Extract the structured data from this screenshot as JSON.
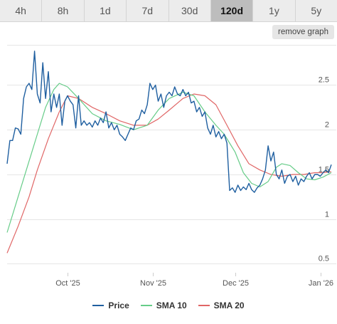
{
  "tabs": [
    {
      "label": "4h",
      "active": false
    },
    {
      "label": "8h",
      "active": false
    },
    {
      "label": "1d",
      "active": false
    },
    {
      "label": "7d",
      "active": false
    },
    {
      "label": "30d",
      "active": false
    },
    {
      "label": "120d",
      "active": true
    },
    {
      "label": "1y",
      "active": false
    },
    {
      "label": "5y",
      "active": false
    }
  ],
  "remove_graph_label": "remove graph",
  "legend": [
    {
      "label": "Price",
      "color": "#1f5fa0"
    },
    {
      "label": "SMA 10",
      "color": "#66cc88"
    },
    {
      "label": "SMA 20",
      "color": "#e06666"
    }
  ],
  "chart_data": {
    "type": "line",
    "x_start": "2025-09-09",
    "x_end": "2026-01-05",
    "x_ticks": [
      {
        "date": "2025-10-01",
        "label": "Oct '25"
      },
      {
        "date": "2025-11-01",
        "label": "Nov '25"
      },
      {
        "date": "2025-12-01",
        "label": "Dec '25"
      },
      {
        "date": "2026-01-01",
        "label": "Jan '26"
      }
    ],
    "y_ticks": [
      0.5,
      1,
      1.5,
      2,
      2.5
    ],
    "y_tick_labels": [
      "0.5",
      "1",
      "1.5",
      "2",
      "2.5"
    ],
    "ylim": [
      0.4,
      2.95
    ],
    "grid": true,
    "legend_position": "bottom-center",
    "series": [
      {
        "name": "Price",
        "color": "#1f5fa0",
        "points": [
          [
            "2025-09-09",
            1.62
          ],
          [
            "2025-09-10",
            1.88
          ],
          [
            "2025-09-11",
            1.88
          ],
          [
            "2025-09-12",
            2.02
          ],
          [
            "2025-09-13",
            2.01
          ],
          [
            "2025-09-14",
            1.95
          ],
          [
            "2025-09-15",
            2.35
          ],
          [
            "2025-09-16",
            2.48
          ],
          [
            "2025-09-17",
            2.52
          ],
          [
            "2025-09-18",
            2.45
          ],
          [
            "2025-09-19",
            2.88
          ],
          [
            "2025-09-20",
            2.4
          ],
          [
            "2025-09-21",
            2.3
          ],
          [
            "2025-09-22",
            2.75
          ],
          [
            "2025-09-23",
            2.35
          ],
          [
            "2025-09-24",
            2.65
          ],
          [
            "2025-09-25",
            2.2
          ],
          [
            "2025-09-26",
            2.4
          ],
          [
            "2025-09-27",
            2.25
          ],
          [
            "2025-09-28",
            2.4
          ],
          [
            "2025-09-29",
            2.05
          ],
          [
            "2025-09-30",
            2.32
          ],
          [
            "2025-10-01",
            2.38
          ],
          [
            "2025-10-02",
            2.32
          ],
          [
            "2025-10-03",
            2.28
          ],
          [
            "2025-10-04",
            2.02
          ],
          [
            "2025-10-05",
            2.38
          ],
          [
            "2025-10-06",
            2.05
          ],
          [
            "2025-10-07",
            2.1
          ],
          [
            "2025-10-08",
            2.05
          ],
          [
            "2025-10-09",
            2.08
          ],
          [
            "2025-10-10",
            2.03
          ],
          [
            "2025-10-11",
            2.1
          ],
          [
            "2025-10-12",
            2.05
          ],
          [
            "2025-10-13",
            2.13
          ],
          [
            "2025-10-14",
            2.08
          ],
          [
            "2025-10-15",
            2.2
          ],
          [
            "2025-10-16",
            2.02
          ],
          [
            "2025-10-17",
            2.08
          ],
          [
            "2025-10-18",
            2.0
          ],
          [
            "2025-10-19",
            2.05
          ],
          [
            "2025-10-20",
            1.95
          ],
          [
            "2025-10-21",
            1.92
          ],
          [
            "2025-10-22",
            1.88
          ],
          [
            "2025-10-23",
            1.95
          ],
          [
            "2025-10-24",
            2.02
          ],
          [
            "2025-10-25",
            2.0
          ],
          [
            "2025-10-26",
            2.1
          ],
          [
            "2025-10-27",
            2.12
          ],
          [
            "2025-10-28",
            2.22
          ],
          [
            "2025-10-29",
            2.18
          ],
          [
            "2025-10-30",
            2.28
          ],
          [
            "2025-10-31",
            2.52
          ],
          [
            "2025-11-01",
            2.45
          ],
          [
            "2025-11-02",
            2.5
          ],
          [
            "2025-11-03",
            2.32
          ],
          [
            "2025-11-04",
            2.4
          ],
          [
            "2025-11-05",
            2.25
          ],
          [
            "2025-11-06",
            2.38
          ],
          [
            "2025-11-07",
            2.42
          ],
          [
            "2025-11-08",
            2.38
          ],
          [
            "2025-11-09",
            2.48
          ],
          [
            "2025-11-10",
            2.4
          ],
          [
            "2025-11-11",
            2.38
          ],
          [
            "2025-11-12",
            2.45
          ],
          [
            "2025-11-13",
            2.38
          ],
          [
            "2025-11-14",
            2.42
          ],
          [
            "2025-11-15",
            2.3
          ],
          [
            "2025-11-16",
            2.32
          ],
          [
            "2025-11-17",
            2.2
          ],
          [
            "2025-11-18",
            2.25
          ],
          [
            "2025-11-19",
            2.15
          ],
          [
            "2025-11-20",
            2.2
          ],
          [
            "2025-11-21",
            2.02
          ],
          [
            "2025-11-22",
            1.95
          ],
          [
            "2025-11-23",
            2.05
          ],
          [
            "2025-11-24",
            1.92
          ],
          [
            "2025-11-25",
            1.98
          ],
          [
            "2025-11-26",
            1.9
          ],
          [
            "2025-11-27",
            1.95
          ],
          [
            "2025-11-28",
            1.85
          ],
          [
            "2025-11-29",
            1.32
          ],
          [
            "2025-11-30",
            1.35
          ],
          [
            "2025-12-01",
            1.3
          ],
          [
            "2025-12-02",
            1.38
          ],
          [
            "2025-12-03",
            1.32
          ],
          [
            "2025-12-04",
            1.36
          ],
          [
            "2025-12-05",
            1.33
          ],
          [
            "2025-12-06",
            1.4
          ],
          [
            "2025-12-07",
            1.33
          ],
          [
            "2025-12-08",
            1.3
          ],
          [
            "2025-12-09",
            1.35
          ],
          [
            "2025-12-10",
            1.38
          ],
          [
            "2025-12-11",
            1.45
          ],
          [
            "2025-12-12",
            1.55
          ],
          [
            "2025-12-13",
            1.82
          ],
          [
            "2025-12-14",
            1.65
          ],
          [
            "2025-12-15",
            1.75
          ],
          [
            "2025-12-16",
            1.5
          ],
          [
            "2025-12-17",
            1.45
          ],
          [
            "2025-12-18",
            1.55
          ],
          [
            "2025-12-19",
            1.4
          ],
          [
            "2025-12-20",
            1.48
          ],
          [
            "2025-12-21",
            1.5
          ],
          [
            "2025-12-22",
            1.42
          ],
          [
            "2025-12-23",
            1.48
          ],
          [
            "2025-12-24",
            1.38
          ],
          [
            "2025-12-25",
            1.45
          ],
          [
            "2025-12-26",
            1.42
          ],
          [
            "2025-12-27",
            1.48
          ],
          [
            "2025-12-28",
            1.52
          ],
          [
            "2025-12-29",
            1.45
          ],
          [
            "2025-12-30",
            1.5
          ],
          [
            "2025-12-31",
            1.5
          ],
          [
            "2026-01-01",
            1.48
          ],
          [
            "2026-01-02",
            1.52
          ],
          [
            "2026-01-03",
            1.55
          ],
          [
            "2026-01-04",
            1.52
          ],
          [
            "2026-01-05",
            1.61
          ]
        ]
      },
      {
        "name": "SMA 10",
        "color": "#66cc88",
        "points": [
          [
            "2025-09-09",
            0.85
          ],
          [
            "2025-09-12",
            1.15
          ],
          [
            "2025-09-15",
            1.45
          ],
          [
            "2025-09-18",
            1.75
          ],
          [
            "2025-09-20",
            1.95
          ],
          [
            "2025-09-23",
            2.25
          ],
          [
            "2025-09-26",
            2.45
          ],
          [
            "2025-09-28",
            2.52
          ],
          [
            "2025-10-01",
            2.48
          ],
          [
            "2025-10-05",
            2.35
          ],
          [
            "2025-10-10",
            2.18
          ],
          [
            "2025-10-15",
            2.1
          ],
          [
            "2025-10-20",
            2.06
          ],
          [
            "2025-10-25",
            2.0
          ],
          [
            "2025-10-30",
            2.05
          ],
          [
            "2025-11-03",
            2.22
          ],
          [
            "2025-11-07",
            2.35
          ],
          [
            "2025-11-12",
            2.42
          ],
          [
            "2025-11-16",
            2.38
          ],
          [
            "2025-11-20",
            2.2
          ],
          [
            "2025-11-24",
            2.05
          ],
          [
            "2025-11-27",
            1.95
          ],
          [
            "2025-12-01",
            1.75
          ],
          [
            "2025-12-04",
            1.52
          ],
          [
            "2025-12-07",
            1.4
          ],
          [
            "2025-12-10",
            1.36
          ],
          [
            "2025-12-13",
            1.42
          ],
          [
            "2025-12-16",
            1.58
          ],
          [
            "2025-12-18",
            1.62
          ],
          [
            "2025-12-21",
            1.6
          ],
          [
            "2025-12-24",
            1.52
          ],
          [
            "2025-12-27",
            1.45
          ],
          [
            "2025-12-30",
            1.44
          ],
          [
            "2026-01-02",
            1.47
          ],
          [
            "2026-01-05",
            1.52
          ]
        ]
      },
      {
        "name": "SMA 20",
        "color": "#e06666",
        "points": [
          [
            "2025-09-09",
            0.62
          ],
          [
            "2025-09-13",
            0.92
          ],
          [
            "2025-09-17",
            1.25
          ],
          [
            "2025-09-20",
            1.55
          ],
          [
            "2025-09-24",
            1.9
          ],
          [
            "2025-09-28",
            2.2
          ],
          [
            "2025-10-01",
            2.38
          ],
          [
            "2025-10-05",
            2.35
          ],
          [
            "2025-10-10",
            2.25
          ],
          [
            "2025-10-15",
            2.18
          ],
          [
            "2025-10-20",
            2.1
          ],
          [
            "2025-10-25",
            2.05
          ],
          [
            "2025-10-30",
            2.05
          ],
          [
            "2025-11-03",
            2.12
          ],
          [
            "2025-11-07",
            2.22
          ],
          [
            "2025-11-12",
            2.35
          ],
          [
            "2025-11-16",
            2.4
          ],
          [
            "2025-11-20",
            2.38
          ],
          [
            "2025-11-24",
            2.28
          ],
          [
            "2025-11-28",
            2.05
          ],
          [
            "2025-12-02",
            1.82
          ],
          [
            "2025-12-06",
            1.62
          ],
          [
            "2025-12-10",
            1.55
          ],
          [
            "2025-12-14",
            1.5
          ],
          [
            "2025-12-18",
            1.48
          ],
          [
            "2025-12-22",
            1.5
          ],
          [
            "2025-12-26",
            1.5
          ],
          [
            "2025-12-30",
            1.52
          ],
          [
            "2026-01-02",
            1.52
          ],
          [
            "2026-01-05",
            1.53
          ]
        ]
      }
    ]
  }
}
